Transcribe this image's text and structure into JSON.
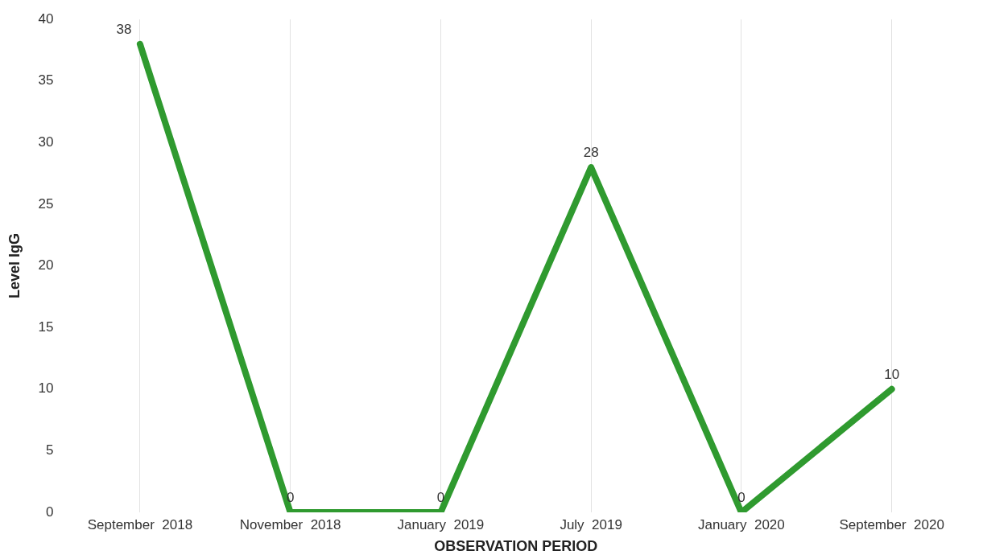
{
  "chart_data": {
    "type": "line",
    "xlabel": "OBSERVATION PERIOD",
    "ylabel": "Level IgG",
    "categories": [
      "September  2018",
      "November  2018",
      "January  2019",
      "July  2019",
      "January  2020",
      "September  2020"
    ],
    "series": [
      {
        "color": "#2f9a2f",
        "values": [
          38,
          0,
          0,
          28,
          0,
          10
        ]
      }
    ],
    "ylim": [
      0,
      40
    ],
    "yticks": [
      0,
      5,
      10,
      15,
      20,
      25,
      30,
      35,
      40
    ],
    "grid": "x",
    "legend": false,
    "marker": "none",
    "line_style": "solid",
    "data_labels": true
  }
}
